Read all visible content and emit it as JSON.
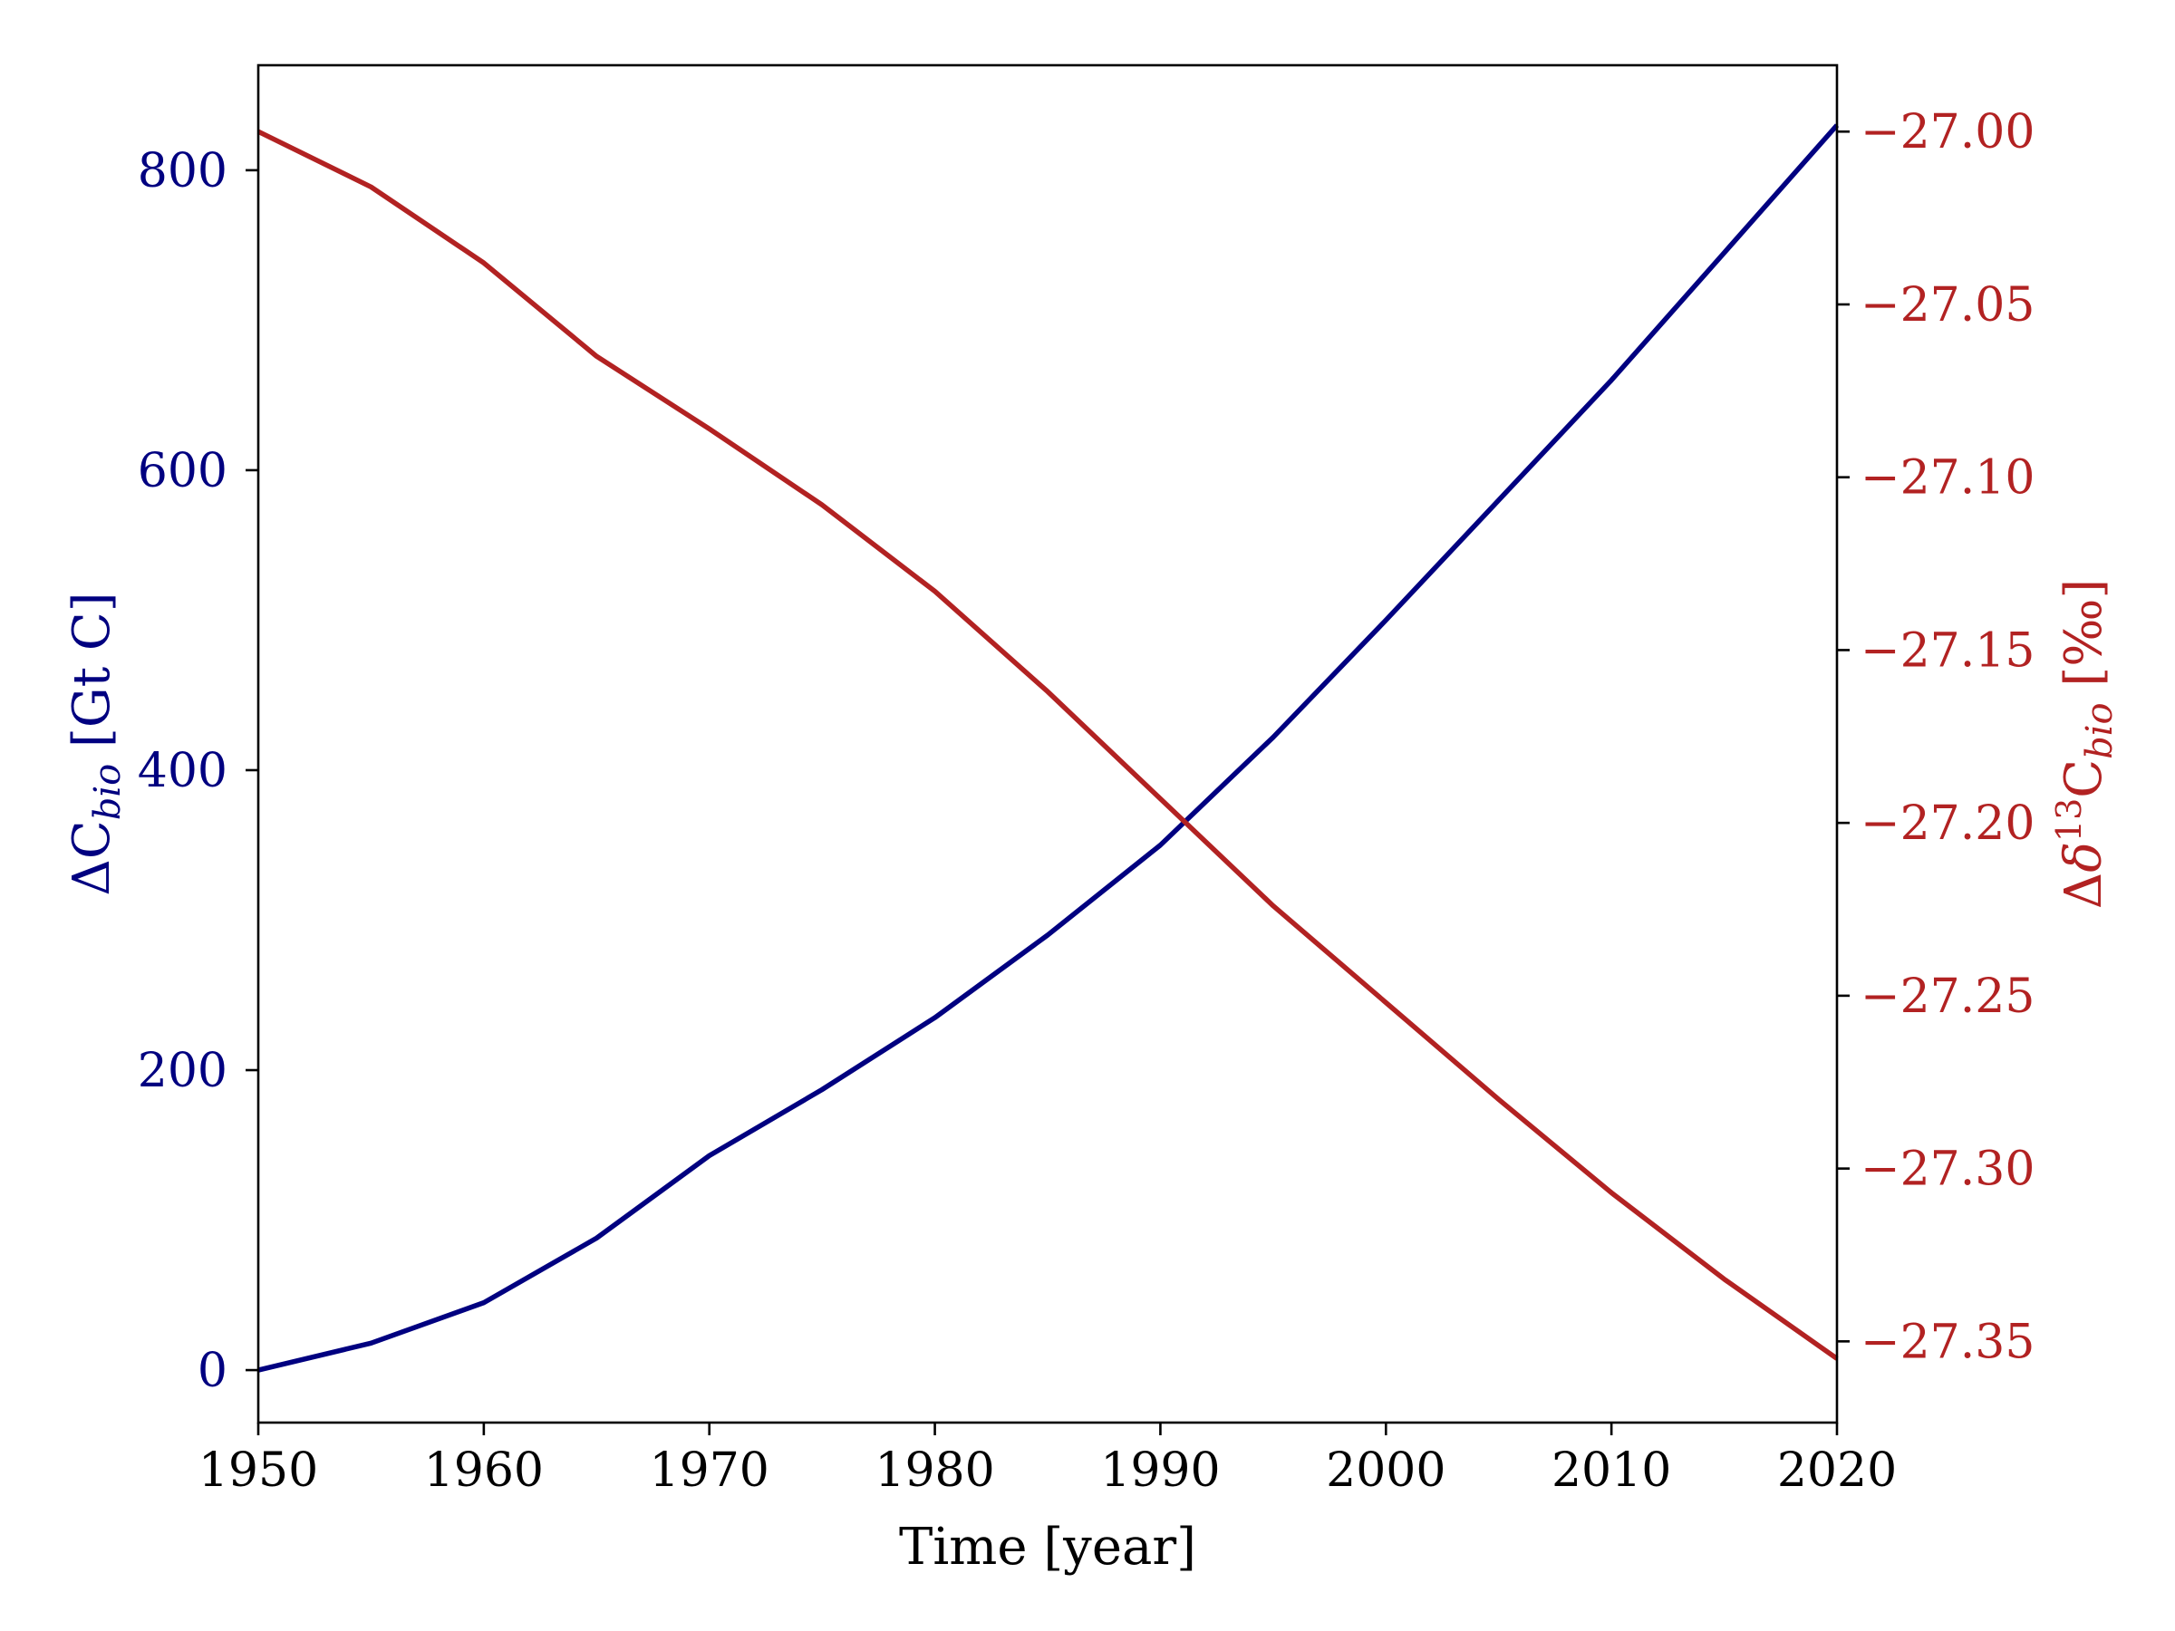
{
  "chart_data": {
    "type": "line",
    "xlabel": "Time [year]",
    "ylabel_left": "ΔC_bio [Gt C]",
    "ylabel_right": "Δδ¹³C_bio [‰]",
    "xlim": [
      1950,
      2020
    ],
    "ylim_left": [
      -35,
      870
    ],
    "ylim_right": [
      -27.3735,
      -26.9808
    ],
    "x_ticks": [
      1950,
      1960,
      1970,
      1980,
      1990,
      2000,
      2010,
      2020
    ],
    "x_tick_labels": [
      "1950",
      "1960",
      "1970",
      "1980",
      "1990",
      "2000",
      "2010",
      "2020"
    ],
    "y_ticks_left": [
      0,
      200,
      400,
      600,
      800
    ],
    "y_tick_labels_left": [
      "0",
      "200",
      "400",
      "600",
      "800"
    ],
    "y_ticks_right": [
      -27.35,
      -27.3,
      -27.25,
      -27.2,
      -27.15,
      -27.1,
      -27.05,
      -27.0
    ],
    "y_tick_labels_right": [
      "−27.35",
      "−27.30",
      "−27.25",
      "−27.20",
      "−27.15",
      "−27.10",
      "−27.05",
      "−27.00"
    ],
    "grid": false,
    "series": [
      {
        "axis": "left",
        "color": "#000080",
        "x": [
          1950,
          1955,
          1960,
          1965,
          1970,
          1975,
          1980,
          1985,
          1990,
          1995,
          2000,
          2005,
          2010,
          2015,
          2020
        ],
        "values": [
          0,
          18,
          45,
          88,
          143,
          187,
          235,
          290,
          350,
          422,
          500,
          580,
          660,
          745,
          830
        ]
      },
      {
        "axis": "right",
        "color": "#b22222",
        "x": [
          1950,
          1955,
          1960,
          1965,
          1970,
          1975,
          1980,
          1985,
          1990,
          1995,
          2000,
          2005,
          2010,
          2015,
          2020
        ],
        "values": [
          -27.0,
          -27.016,
          -27.038,
          -27.065,
          -27.086,
          -27.108,
          -27.133,
          -27.162,
          -27.193,
          -27.224,
          -27.252,
          -27.28,
          -27.307,
          -27.332,
          -27.355
        ]
      }
    ]
  }
}
